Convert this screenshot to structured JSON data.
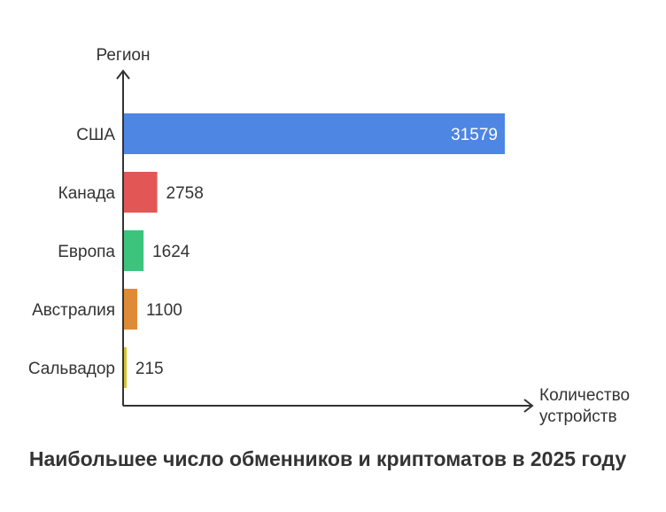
{
  "chart_data": {
    "type": "bar",
    "orientation": "horizontal",
    "title": "Наибольшее число обменников и криптоматов в 2025 году",
    "ylabel": "Регион",
    "xlabel_lines": [
      "Количество",
      "устройств"
    ],
    "categories": [
      "США",
      "Канада",
      "Европа",
      "Австралия",
      "Сальвадор"
    ],
    "values": [
      31579,
      2758,
      1624,
      1100,
      215
    ],
    "colors": [
      "#4e86e4",
      "#e35656",
      "#3cc47c",
      "#df8a36",
      "#d6c22e"
    ],
    "value_label_colors": [
      "#ffffff",
      "#333333",
      "#333333",
      "#333333",
      "#333333"
    ],
    "xlim": [
      0,
      31579
    ],
    "grid": false,
    "legend": "none"
  }
}
